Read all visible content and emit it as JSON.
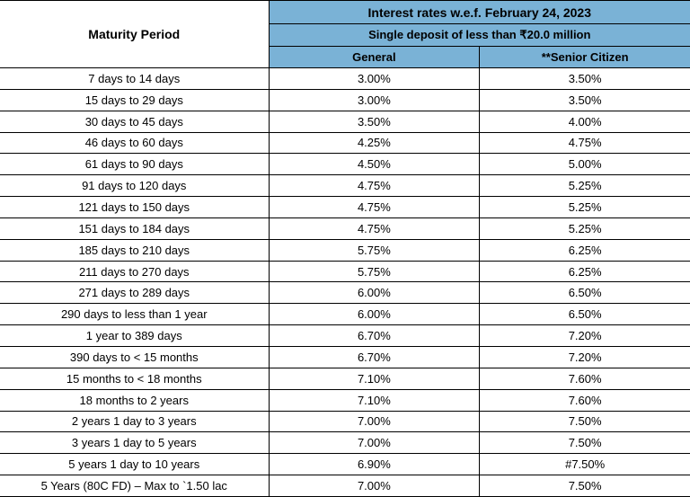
{
  "colors": {
    "header_bg": "#7ab2d6",
    "border": "#000000",
    "text": "#000000",
    "row_bg": "#ffffff"
  },
  "header": {
    "maturity_label": "Maturity Period",
    "title": "Interest rates w.e.f. February 24, 2023",
    "subtitle": "Single deposit of less than ₹20.0 million",
    "col_general": "General",
    "col_senior": "**Senior Citizen"
  },
  "rows": [
    {
      "period": "7 days to 14 days",
      "general": "3.00%",
      "senior": "3.50%"
    },
    {
      "period": "15 days to 29 days",
      "general": "3.00%",
      "senior": "3.50%"
    },
    {
      "period": "30 days to 45 days",
      "general": "3.50%",
      "senior": "4.00%"
    },
    {
      "period": "46 days to 60 days",
      "general": "4.25%",
      "senior": "4.75%"
    },
    {
      "period": "61 days to 90 days",
      "general": "4.50%",
      "senior": "5.00%"
    },
    {
      "period": "91 days to 120 days",
      "general": "4.75%",
      "senior": "5.25%"
    },
    {
      "period": "121 days to 150 days",
      "general": "4.75%",
      "senior": "5.25%"
    },
    {
      "period": "151 days to 184 days",
      "general": "4.75%",
      "senior": "5.25%"
    },
    {
      "period": "185 days to 210 days",
      "general": "5.75%",
      "senior": "6.25%"
    },
    {
      "period": "211 days to 270 days",
      "general": "5.75%",
      "senior": "6.25%"
    },
    {
      "period": "271 days to 289 days",
      "general": "6.00%",
      "senior": "6.50%"
    },
    {
      "period": "290 days to less than 1 year",
      "general": "6.00%",
      "senior": "6.50%"
    },
    {
      "period": "1 year to 389 days",
      "general": "6.70%",
      "senior": "7.20%"
    },
    {
      "period": "390 days to < 15 months",
      "general": "6.70%",
      "senior": "7.20%"
    },
    {
      "period": "15 months to < 18 months",
      "general": "7.10%",
      "senior": "7.60%"
    },
    {
      "period": "18 months to 2 years",
      "general": "7.10%",
      "senior": "7.60%"
    },
    {
      "period": "2 years 1 day to 3 years",
      "general": "7.00%",
      "senior": "7.50%"
    },
    {
      "period": "3 years 1 day to 5 years",
      "general": "7.00%",
      "senior": "7.50%"
    },
    {
      "period": "5 years 1 day to 10 years",
      "general": "6.90%",
      "senior": "#7.50%"
    },
    {
      "period": "5 Years (80C FD) – Max to `1.50 lac",
      "general": "7.00%",
      "senior": "7.50%"
    }
  ]
}
